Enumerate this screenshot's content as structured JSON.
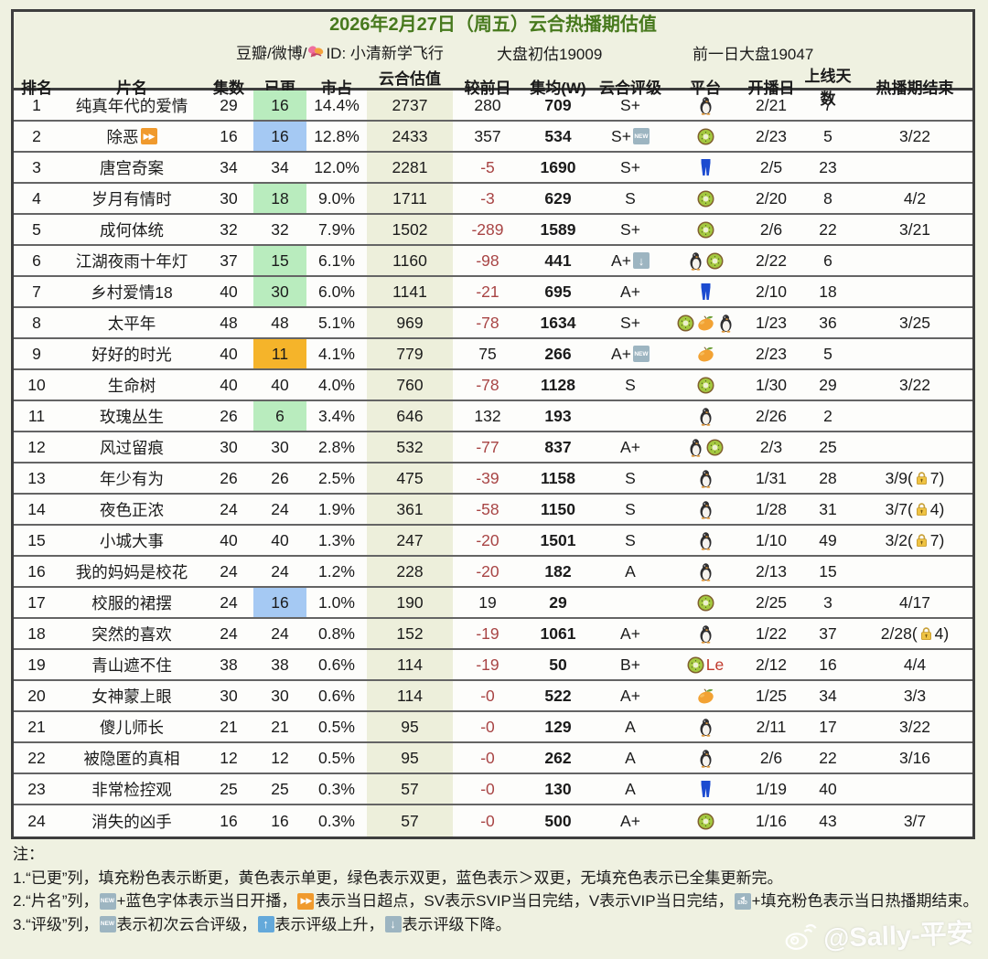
{
  "header": {
    "title": "2026年2月27日（周五）云合热播期估值",
    "source_prefix": "豆瓣/微博/",
    "id_label": "ID: 小清新学飞行",
    "market_estimate": "大盘初估19009",
    "prev_market": "前一日大盘19047"
  },
  "colors": {
    "page_bg": "#eff1e1",
    "title_green": "#47791d",
    "valuation_col_bg": "#edefdb",
    "negative_red": "#a84444",
    "fill_green": "#b9ecbe",
    "fill_blue": "#a5c9f3",
    "fill_yellow": "#f5b42a",
    "badge_gray_blue": "#9db5c1",
    "badge_bright_blue": "#64a9da",
    "badge_orange": "#f09a2d"
  },
  "table": {
    "columns": [
      "排名",
      "片名",
      "集数",
      "已更",
      "市占",
      "云合估值(W)",
      "较前日",
      "集均(W)",
      "云合评级",
      "平台",
      "开播日",
      "上线天数",
      "热播期结束"
    ],
    "rows": [
      {
        "rank": "1",
        "title": "纯真年代的爱情",
        "eps": "29",
        "upd": "16",
        "upd_fill": "green",
        "share": "14.4%",
        "val": "2737",
        "chg": "280",
        "avg": "709",
        "rating": "S+",
        "platform": [
          {
            "i": "penguin-icon"
          }
        ],
        "start": "2/21",
        "days": "7",
        "end": ""
      },
      {
        "rank": "2",
        "title": [
          {
            "t": "除恶"
          },
          {
            "i": "ff-badge-icon"
          }
        ],
        "eps": "16",
        "upd": "16",
        "upd_fill": "blue",
        "share": "12.8%",
        "val": "2433",
        "chg": "357",
        "avg": "534",
        "rating": [
          {
            "t": "S+"
          },
          {
            "i": "new-badge-icon"
          }
        ],
        "platform": [
          {
            "i": "kiwi-icon"
          }
        ],
        "start": "2/23",
        "days": "5",
        "end": "3/22"
      },
      {
        "rank": "3",
        "title": "唐宫奇案",
        "eps": "34",
        "upd": "34",
        "upd_fill": "none",
        "share": "12.0%",
        "val": "2281",
        "chg": "-5",
        "avg": "1690",
        "rating": "S+",
        "platform": [
          {
            "i": "youku-icon"
          }
        ],
        "start": "2/5",
        "days": "23",
        "end": ""
      },
      {
        "rank": "4",
        "title": "岁月有情时",
        "eps": "30",
        "upd": "18",
        "upd_fill": "green",
        "share": "9.0%",
        "val": "1711",
        "chg": "-3",
        "avg": "629",
        "rating": "S",
        "platform": [
          {
            "i": "kiwi-icon"
          }
        ],
        "start": "2/20",
        "days": "8",
        "end": "4/2"
      },
      {
        "rank": "5",
        "title": "成何体统",
        "eps": "32",
        "upd": "32",
        "upd_fill": "none",
        "share": "7.9%",
        "val": "1502",
        "chg": "-289",
        "avg": "1589",
        "rating": "S+",
        "platform": [
          {
            "i": "kiwi-icon"
          }
        ],
        "start": "2/6",
        "days": "22",
        "end": "3/21"
      },
      {
        "rank": "6",
        "title": "江湖夜雨十年灯",
        "eps": "37",
        "upd": "15",
        "upd_fill": "green",
        "share": "6.1%",
        "val": "1160",
        "chg": "-98",
        "avg": "441",
        "rating": [
          {
            "t": "A+"
          },
          {
            "i": "down-badge-icon"
          }
        ],
        "platform": [
          {
            "i": "penguin-icon"
          },
          {
            "i": "kiwi-icon"
          }
        ],
        "start": "2/22",
        "days": "6",
        "end": ""
      },
      {
        "rank": "7",
        "title": "乡村爱情18",
        "eps": "40",
        "upd": "30",
        "upd_fill": "green",
        "share": "6.0%",
        "val": "1141",
        "chg": "-21",
        "avg": "695",
        "rating": "A+",
        "platform": [
          {
            "i": "youku-icon"
          }
        ],
        "start": "2/10",
        "days": "18",
        "end": ""
      },
      {
        "rank": "8",
        "title": "太平年",
        "eps": "48",
        "upd": "48",
        "upd_fill": "none",
        "share": "5.1%",
        "val": "969",
        "chg": "-78",
        "avg": "1634",
        "rating": "S+",
        "platform": [
          {
            "i": "kiwi-icon"
          },
          {
            "i": "mango-icon"
          },
          {
            "i": "penguin-icon"
          }
        ],
        "start": "1/23",
        "days": "36",
        "end": "3/25"
      },
      {
        "rank": "9",
        "title": "好好的时光",
        "eps": "40",
        "upd": "11",
        "upd_fill": "yellow",
        "share": "4.1%",
        "val": "779",
        "chg": "75",
        "avg": "266",
        "rating": [
          {
            "t": "A+"
          },
          {
            "i": "new-badge-icon"
          }
        ],
        "platform": [
          {
            "i": "mango-icon"
          }
        ],
        "start": "2/23",
        "days": "5",
        "end": ""
      },
      {
        "rank": "10",
        "title": "生命树",
        "eps": "40",
        "upd": "40",
        "upd_fill": "none",
        "share": "4.0%",
        "val": "760",
        "chg": "-78",
        "avg": "1128",
        "rating": "S",
        "platform": [
          {
            "i": "kiwi-icon"
          }
        ],
        "start": "1/30",
        "days": "29",
        "end": "3/22"
      },
      {
        "rank": "11",
        "title": "玫瑰丛生",
        "eps": "26",
        "upd": "6",
        "upd_fill": "green",
        "share": "3.4%",
        "val": "646",
        "chg": "132",
        "avg": "193",
        "rating": "",
        "platform": [
          {
            "i": "penguin-icon"
          }
        ],
        "start": "2/26",
        "days": "2",
        "end": ""
      },
      {
        "rank": "12",
        "title": "风过留痕",
        "eps": "30",
        "upd": "30",
        "upd_fill": "none",
        "share": "2.8%",
        "val": "532",
        "chg": "-77",
        "avg": "837",
        "rating": "A+",
        "platform": [
          {
            "i": "penguin-icon"
          },
          {
            "i": "kiwi-icon"
          }
        ],
        "start": "2/3",
        "days": "25",
        "end": ""
      },
      {
        "rank": "13",
        "title": "年少有为",
        "eps": "26",
        "upd": "26",
        "upd_fill": "none",
        "share": "2.5%",
        "val": "475",
        "chg": "-39",
        "avg": "1158",
        "rating": "S",
        "platform": [
          {
            "i": "penguin-icon"
          }
        ],
        "start": "1/31",
        "days": "28",
        "end": [
          {
            "t": "3/9("
          },
          {
            "i": "lock-icon"
          },
          {
            "t": "7)"
          }
        ]
      },
      {
        "rank": "14",
        "title": "夜色正浓",
        "eps": "24",
        "upd": "24",
        "upd_fill": "none",
        "share": "1.9%",
        "val": "361",
        "chg": "-58",
        "avg": "1150",
        "rating": "S",
        "platform": [
          {
            "i": "penguin-icon"
          }
        ],
        "start": "1/28",
        "days": "31",
        "end": [
          {
            "t": "3/7("
          },
          {
            "i": "lock-icon"
          },
          {
            "t": "4)"
          }
        ]
      },
      {
        "rank": "15",
        "title": "小城大事",
        "eps": "40",
        "upd": "40",
        "upd_fill": "none",
        "share": "1.3%",
        "val": "247",
        "chg": "-20",
        "avg": "1501",
        "rating": "S",
        "platform": [
          {
            "i": "penguin-icon"
          }
        ],
        "start": "1/10",
        "days": "49",
        "end": [
          {
            "t": "3/2("
          },
          {
            "i": "lock-icon"
          },
          {
            "t": "7)"
          }
        ]
      },
      {
        "rank": "16",
        "title": "我的妈妈是校花",
        "eps": "24",
        "upd": "24",
        "upd_fill": "none",
        "share": "1.2%",
        "val": "228",
        "chg": "-20",
        "avg": "182",
        "rating": "A",
        "platform": [
          {
            "i": "penguin-icon"
          }
        ],
        "start": "2/13",
        "days": "15",
        "end": ""
      },
      {
        "rank": "17",
        "title": "校服的裙摆",
        "eps": "24",
        "upd": "16",
        "upd_fill": "blue",
        "share": "1.0%",
        "val": "190",
        "chg": "19",
        "avg": "29",
        "rating": "",
        "platform": [
          {
            "i": "kiwi-icon"
          }
        ],
        "start": "2/25",
        "days": "3",
        "end": "4/17"
      },
      {
        "rank": "18",
        "title": "突然的喜欢",
        "eps": "24",
        "upd": "24",
        "upd_fill": "none",
        "share": "0.8%",
        "val": "152",
        "chg": "-19",
        "avg": "1061",
        "rating": "A+",
        "platform": [
          {
            "i": "penguin-icon"
          }
        ],
        "start": "1/22",
        "days": "37",
        "end": [
          {
            "t": "2/28("
          },
          {
            "i": "lock-icon"
          },
          {
            "t": "4)"
          }
        ]
      },
      {
        "rank": "19",
        "title": "青山遮不住",
        "eps": "38",
        "upd": "38",
        "upd_fill": "none",
        "share": "0.6%",
        "val": "114",
        "chg": "-19",
        "avg": "50",
        "rating": "B+",
        "platform": [
          {
            "i": "kiwi-icon"
          },
          {
            "t": "Le",
            "c": "le"
          }
        ],
        "start": "2/12",
        "days": "16",
        "end": "4/4"
      },
      {
        "rank": "20",
        "title": "女神蒙上眼",
        "eps": "30",
        "upd": "30",
        "upd_fill": "none",
        "share": "0.6%",
        "val": "114",
        "chg": "-0",
        "avg": "522",
        "rating": "A+",
        "platform": [
          {
            "i": "mango-icon"
          }
        ],
        "start": "1/25",
        "days": "34",
        "end": "3/3"
      },
      {
        "rank": "21",
        "title": "傻儿师长",
        "eps": "21",
        "upd": "21",
        "upd_fill": "none",
        "share": "0.5%",
        "val": "95",
        "chg": "-0",
        "avg": "129",
        "rating": "A",
        "platform": [
          {
            "i": "penguin-icon"
          }
        ],
        "start": "2/11",
        "days": "17",
        "end": "3/22"
      },
      {
        "rank": "22",
        "title": "被隐匿的真相",
        "eps": "12",
        "upd": "12",
        "upd_fill": "none",
        "share": "0.5%",
        "val": "95",
        "chg": "-0",
        "avg": "262",
        "rating": "A",
        "platform": [
          {
            "i": "penguin-icon"
          }
        ],
        "start": "2/6",
        "days": "22",
        "end": "3/16"
      },
      {
        "rank": "23",
        "title": "非常检控观",
        "eps": "25",
        "upd": "25",
        "upd_fill": "none",
        "share": "0.3%",
        "val": "57",
        "chg": "-0",
        "avg": "130",
        "rating": "A",
        "platform": [
          {
            "i": "youku-icon"
          }
        ],
        "start": "1/19",
        "days": "40",
        "end": ""
      },
      {
        "rank": "24",
        "title": "消失的凶手",
        "eps": "16",
        "upd": "16",
        "upd_fill": "none",
        "share": "0.3%",
        "val": "57",
        "chg": "-0",
        "avg": "500",
        "rating": "A+",
        "platform": [
          {
            "i": "kiwi-icon"
          }
        ],
        "start": "1/16",
        "days": "43",
        "end": "3/7"
      }
    ]
  },
  "chart_data": {
    "type": "table",
    "title": "2026年2月27日（周五）云合热播期估值",
    "subtitle": "豆瓣/微博/ID: 小清新学飞行  大盘初估19009  前一日大盘19047",
    "columns": [
      "排名",
      "片名",
      "集数",
      "已更",
      "市占",
      "云合估值(W)",
      "较前日",
      "集均(W)",
      "云合评级",
      "平台",
      "开播日",
      "上线天数",
      "热播期结束"
    ],
    "rows": [
      [
        "1",
        "纯真年代的爱情",
        "29",
        "16",
        "14.4%",
        "2737",
        "280",
        "709",
        "S+",
        "penguin",
        "2/21",
        "7",
        ""
      ],
      [
        "2",
        "除恶⏩",
        "16",
        "16",
        "12.8%",
        "2433",
        "357",
        "534",
        "S+ NEW",
        "kiwi",
        "2/23",
        "5",
        "3/22"
      ],
      [
        "3",
        "唐宫奇案",
        "34",
        "34",
        "12.0%",
        "2281",
        "-5",
        "1690",
        "S+",
        "youku",
        "2/5",
        "23",
        ""
      ],
      [
        "4",
        "岁月有情时",
        "30",
        "18",
        "9.0%",
        "1711",
        "-3",
        "629",
        "S",
        "kiwi",
        "2/20",
        "8",
        "4/2"
      ],
      [
        "5",
        "成何体统",
        "32",
        "32",
        "7.9%",
        "1502",
        "-289",
        "1589",
        "S+",
        "kiwi",
        "2/6",
        "22",
        "3/21"
      ],
      [
        "6",
        "江湖夜雨十年灯",
        "37",
        "15",
        "6.1%",
        "1160",
        "-98",
        "441",
        "A+ ↓",
        "penguin+kiwi",
        "2/22",
        "6",
        ""
      ],
      [
        "7",
        "乡村爱情18",
        "40",
        "30",
        "6.0%",
        "1141",
        "-21",
        "695",
        "A+",
        "youku",
        "2/10",
        "18",
        ""
      ],
      [
        "8",
        "太平年",
        "48",
        "48",
        "5.1%",
        "969",
        "-78",
        "1634",
        "S+",
        "kiwi+mango+penguin",
        "1/23",
        "36",
        "3/25"
      ],
      [
        "9",
        "好好的时光",
        "40",
        "11",
        "4.1%",
        "779",
        "75",
        "266",
        "A+ NEW",
        "mango",
        "2/23",
        "5",
        ""
      ],
      [
        "10",
        "生命树",
        "40",
        "40",
        "4.0%",
        "760",
        "-78",
        "1128",
        "S",
        "kiwi",
        "1/30",
        "29",
        "3/22"
      ],
      [
        "11",
        "玫瑰丛生",
        "26",
        "6",
        "3.4%",
        "646",
        "132",
        "193",
        "",
        "penguin",
        "2/26",
        "2",
        ""
      ],
      [
        "12",
        "风过留痕",
        "30",
        "30",
        "2.8%",
        "532",
        "-77",
        "837",
        "A+",
        "penguin+kiwi",
        "2/3",
        "25",
        ""
      ],
      [
        "13",
        "年少有为",
        "26",
        "26",
        "2.5%",
        "475",
        "-39",
        "1158",
        "S",
        "penguin",
        "1/31",
        "28",
        "3/9(锁7)"
      ],
      [
        "14",
        "夜色正浓",
        "24",
        "24",
        "1.9%",
        "361",
        "-58",
        "1150",
        "S",
        "penguin",
        "1/28",
        "31",
        "3/7(锁4)"
      ],
      [
        "15",
        "小城大事",
        "40",
        "40",
        "1.3%",
        "247",
        "-20",
        "1501",
        "S",
        "penguin",
        "1/10",
        "49",
        "3/2(锁7)"
      ],
      [
        "16",
        "我的妈妈是校花",
        "24",
        "24",
        "1.2%",
        "228",
        "-20",
        "182",
        "A",
        "penguin",
        "2/13",
        "15",
        ""
      ],
      [
        "17",
        "校服的裙摆",
        "24",
        "16",
        "1.0%",
        "190",
        "19",
        "29",
        "",
        "kiwi",
        "2/25",
        "3",
        "4/17"
      ],
      [
        "18",
        "突然的喜欢",
        "24",
        "24",
        "0.8%",
        "152",
        "-19",
        "1061",
        "A+",
        "penguin",
        "1/22",
        "37",
        "2/28(锁4)"
      ],
      [
        "19",
        "青山遮不住",
        "38",
        "38",
        "0.6%",
        "114",
        "-19",
        "50",
        "B+",
        "kiwi+Le",
        "2/12",
        "16",
        "4/4"
      ],
      [
        "20",
        "女神蒙上眼",
        "30",
        "30",
        "0.6%",
        "114",
        "-0",
        "522",
        "A+",
        "mango",
        "1/25",
        "34",
        "3/3"
      ],
      [
        "21",
        "傻儿师长",
        "21",
        "21",
        "0.5%",
        "95",
        "-0",
        "129",
        "A",
        "penguin",
        "2/11",
        "17",
        "3/22"
      ],
      [
        "22",
        "被隐匿的真相",
        "12",
        "12",
        "0.5%",
        "95",
        "-0",
        "262",
        "A",
        "penguin",
        "2/6",
        "22",
        "3/16"
      ],
      [
        "23",
        "非常检控观",
        "25",
        "25",
        "0.3%",
        "57",
        "-0",
        "130",
        "A",
        "youku",
        "1/19",
        "40",
        ""
      ],
      [
        "24",
        "消失的凶手",
        "16",
        "16",
        "0.3%",
        "57",
        "-0",
        "500",
        "A+",
        "kiwi",
        "1/16",
        "43",
        "3/7"
      ]
    ]
  },
  "legend": {
    "label": "注：",
    "lines": [
      [
        {
          "t": "1.“已更”列，填充粉色表示断更，黄色表示单更，绿色表示双更，蓝色表示＞双更，无填充色表示已全集更新完。"
        }
      ],
      [
        {
          "t": "2.“片名”列，"
        },
        {
          "i": "new-badge-icon"
        },
        {
          "t": "+蓝色字体表示当日开播，"
        },
        {
          "i": "ff-badge-icon"
        },
        {
          "t": "表示当日超点，SV表示SVIP当日完结，V表示VIP当日完结，"
        },
        {
          "i": "end-badge-icon"
        },
        {
          "t": "+填充粉色表示当日热播期结束。"
        }
      ],
      [
        {
          "t": "3.“评级”列，"
        },
        {
          "i": "new-badge-icon"
        },
        {
          "t": "表示初次云合评级，"
        },
        {
          "i": "up-badge-icon"
        },
        {
          "t": "表示评级上升，"
        },
        {
          "i": "down-badge-icon"
        },
        {
          "t": "表示评级下降。"
        }
      ]
    ]
  },
  "watermark": "@Sally-平安"
}
